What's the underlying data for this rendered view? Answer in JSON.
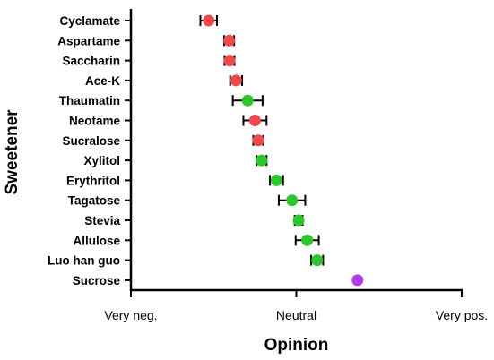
{
  "chart_data": {
    "type": "scatter",
    "title": "",
    "xlabel": "Opinion",
    "ylabel": "Sweetener",
    "xlim": [
      0,
      1
    ],
    "x_ticks": [
      {
        "value": 0,
        "label": "Very neg."
      },
      {
        "value": 0.5,
        "label": "Neutral"
      },
      {
        "value": 1,
        "label": "Very pos."
      }
    ],
    "grid": false,
    "legend": "none",
    "colors": {
      "red": "#f24848",
      "green": "#2bc72b",
      "purple": "#b43af0"
    },
    "points": [
      {
        "name": "Cyclamate",
        "x": 0.235,
        "err": 0.025,
        "color": "red"
      },
      {
        "name": "Aspartame",
        "x": 0.297,
        "err": 0.015,
        "color": "red"
      },
      {
        "name": "Saccharin",
        "x": 0.298,
        "err": 0.015,
        "color": "red"
      },
      {
        "name": "Ace-K",
        "x": 0.318,
        "err": 0.018,
        "color": "red"
      },
      {
        "name": "Thaumatin",
        "x": 0.353,
        "err": 0.045,
        "color": "green"
      },
      {
        "name": "Neotame",
        "x": 0.375,
        "err": 0.035,
        "color": "red"
      },
      {
        "name": "Sucralose",
        "x": 0.385,
        "err": 0.015,
        "color": "red"
      },
      {
        "name": "Xylitol",
        "x": 0.395,
        "err": 0.015,
        "color": "green"
      },
      {
        "name": "Erythritol",
        "x": 0.44,
        "err": 0.02,
        "color": "green"
      },
      {
        "name": "Tagatose",
        "x": 0.487,
        "err": 0.04,
        "color": "green"
      },
      {
        "name": "Stevia",
        "x": 0.507,
        "err": 0.012,
        "color": "green"
      },
      {
        "name": "Allulose",
        "x": 0.533,
        "err": 0.035,
        "color": "green"
      },
      {
        "name": "Luo han guo",
        "x": 0.563,
        "err": 0.018,
        "color": "green"
      },
      {
        "name": "Sucrose",
        "x": 0.685,
        "err": 0,
        "color": "purple"
      }
    ]
  }
}
